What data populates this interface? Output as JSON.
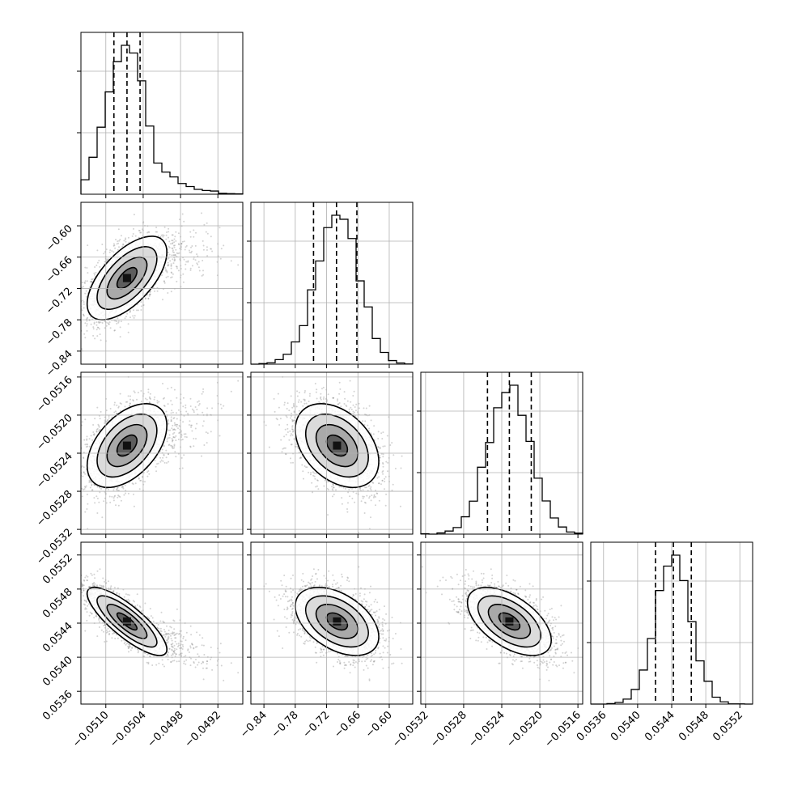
{
  "chart_data": {
    "type": "scatter",
    "subtype": "corner-plot",
    "grid": true,
    "colors": {
      "ink": "#000000",
      "grid": "#b0b0b0",
      "points": "#808080"
    },
    "parameters": [
      {
        "mean": -0.05066,
        "sd": 0.00032,
        "range": [
          -0.0514,
          -0.0488
        ],
        "quantiles": [
          -0.05087,
          -0.05066,
          -0.05045
        ],
        "ticks": [
          -0.051,
          -0.0504,
          -0.0498,
          -0.0492
        ],
        "tick_labels": [
          "−0.0510",
          "−0.0504",
          "−0.0498",
          "−0.0492"
        ]
      },
      {
        "mean": -0.7,
        "sd": 0.04,
        "range": [
          -0.865,
          -0.555
        ],
        "quantiles": [
          -0.745,
          -0.701,
          -0.662
        ],
        "ticks": [
          -0.84,
          -0.78,
          -0.72,
          -0.66,
          -0.6
        ],
        "tick_labels": [
          "−0.84",
          "−0.78",
          "−0.72",
          "−0.66",
          "−0.60"
        ]
      },
      {
        "mean": -0.05232,
        "sd": 0.00022,
        "range": [
          -0.05325,
          -0.05155
        ],
        "quantiles": [
          -0.05255,
          -0.05232,
          -0.05209
        ],
        "ticks": [
          -0.0532,
          -0.0528,
          -0.0524,
          -0.052,
          -0.0516
        ],
        "tick_labels": [
          "−0.0532",
          "−0.0528",
          "−0.0524",
          "−0.0520",
          "−0.0516"
        ]
      },
      {
        "mean": 0.05442,
        "sd": 0.0002,
        "range": [
          0.05345,
          0.05535
        ],
        "quantiles": [
          0.05421,
          0.05442,
          0.05463
        ],
        "ticks": [
          0.0536,
          0.054,
          0.0544,
          0.0548,
          0.0552
        ],
        "tick_labels": [
          "0.0536",
          "0.0540",
          "0.0544",
          "0.0548",
          "0.0552"
        ]
      }
    ],
    "correlations": [
      [
        1.0,
        0.62,
        0.48,
        -0.82
      ],
      [
        0.62,
        1.0,
        -0.38,
        -0.45
      ],
      [
        0.48,
        -0.38,
        1.0,
        -0.55
      ],
      [
        -0.82,
        -0.45,
        -0.55,
        1.0
      ]
    ]
  }
}
